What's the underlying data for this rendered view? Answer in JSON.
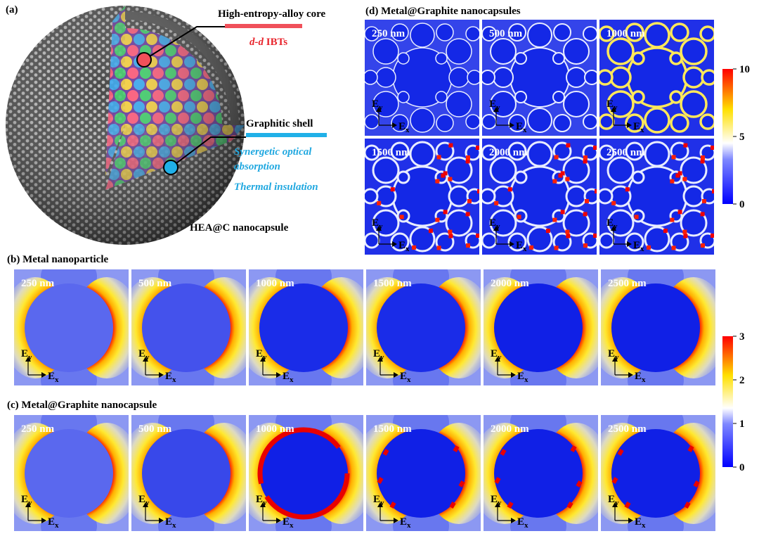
{
  "panel_a": {
    "label": "(a)",
    "core_label": "High-entropy-alloy core",
    "core_note_italic": "d-d",
    "core_note": "IBTs",
    "shell_label": "Graphitic shell",
    "shell_notes": [
      "Synergetic optical",
      "absorption",
      "Thermal insulation"
    ],
    "caption": "HEA@C nanocapsule"
  },
  "panel_b": {
    "label": "(b)",
    "title": "Metal nanoparticle",
    "wavelengths": [
      "250 nm",
      "500 nm",
      "1000 nm",
      "1500 nm",
      "2000 nm",
      "2500 nm"
    ]
  },
  "panel_c": {
    "label": "(c)",
    "title": "Metal@Graphite nanocapsule",
    "wavelengths": [
      "250 nm",
      "500 nm",
      "1000 nm",
      "1500 nm",
      "2000 nm",
      "2500 nm"
    ]
  },
  "panel_d": {
    "label": "(d)",
    "title": "Metal@Graphite nanocapsules",
    "wavelengths": [
      "250 nm",
      "500 nm",
      "1000 nm",
      "1500 nm",
      "2000 nm",
      "2500 nm"
    ]
  },
  "field_axes": {
    "symbol": "E",
    "vertical": "y",
    "horizontal": "x"
  },
  "colorbar_d": {
    "ticks": [
      10,
      5,
      0
    ]
  },
  "colorbar_bc": {
    "ticks": [
      3,
      2,
      1,
      0
    ]
  }
}
